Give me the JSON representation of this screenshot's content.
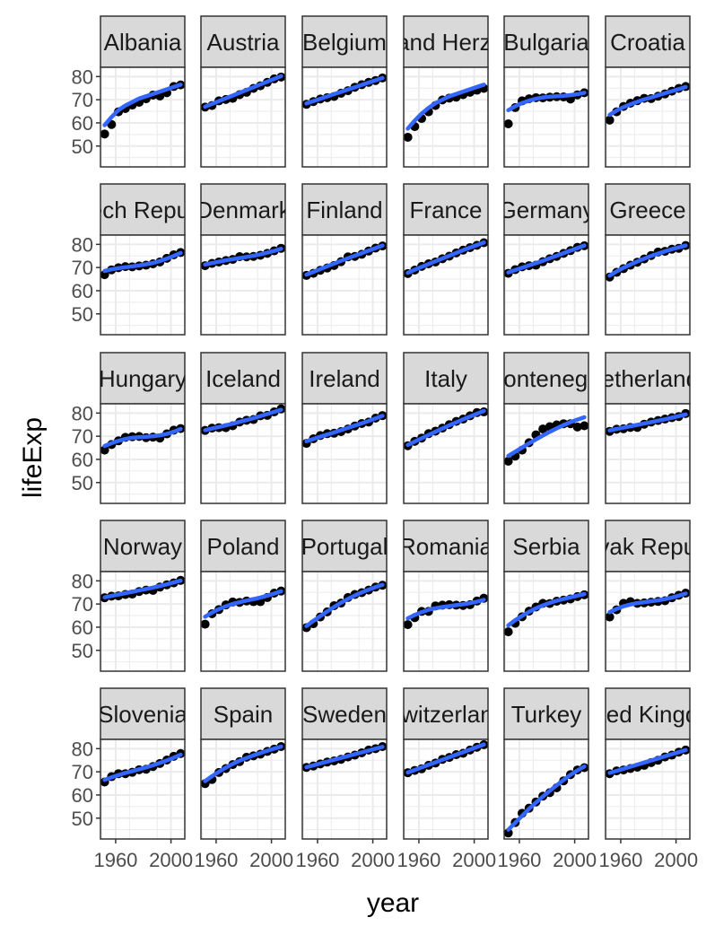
{
  "chart_data": {
    "type": "scatter",
    "xlabel": "year",
    "ylabel": "lifeExp",
    "x_ticks": [
      1960,
      2000
    ],
    "x_tick_labels": [
      "1960",
      "2000"
    ],
    "y_ticks": [
      50,
      60,
      70,
      80
    ],
    "y_tick_labels": [
      "50",
      "60",
      "70",
      "80"
    ],
    "xlim": [
      1949,
      2010
    ],
    "ylim": [
      41,
      84
    ],
    "years": [
      1952,
      1957,
      1962,
      1967,
      1972,
      1977,
      1982,
      1987,
      1992,
      1997,
      2002,
      2007
    ],
    "smooth": "loess fitted line with confidence band",
    "colors": {
      "points": "#000000",
      "smooth_line": "#3366FF",
      "smooth_band": "#999999",
      "panel_background": "#FFFFFF",
      "panel_grid": "#EBEBEB",
      "panel_border": "#333333",
      "strip_background": "#D9D9D9",
      "strip_border": "#333333"
    },
    "panels": [
      {
        "country": "Albania",
        "strip_label": "Albania",
        "lifeExp": [
          55.2,
          59.3,
          64.8,
          66.2,
          67.7,
          68.9,
          70.4,
          72.0,
          71.6,
          73.0,
          75.7,
          76.4
        ],
        "smooth": [
          59,
          62.5,
          65.5,
          67.5,
          69,
          70.5,
          71.5,
          72.5,
          73.5,
          74.5,
          75.5,
          76.5
        ]
      },
      {
        "country": "Austria",
        "strip_label": "Austria",
        "lifeExp": [
          66.8,
          67.5,
          69.5,
          70.1,
          70.6,
          72.2,
          73.2,
          74.9,
          76.0,
          77.5,
          79.0,
          79.8
        ],
        "smooth": [
          67,
          68.2,
          69.4,
          70.6,
          71.8,
          73,
          74.2,
          75.4,
          76.6,
          77.8,
          79,
          80.2
        ]
      },
      {
        "country": "Belgium",
        "strip_label": "Belgium",
        "lifeExp": [
          68.0,
          69.2,
          70.3,
          70.9,
          71.4,
          72.8,
          73.9,
          75.4,
          76.5,
          77.5,
          78.3,
          79.4
        ],
        "smooth": [
          68.4,
          69.4,
          70.4,
          71.4,
          72.4,
          73.4,
          74.4,
          75.4,
          76.4,
          77.4,
          78.4,
          79.4
        ]
      },
      {
        "country": "Bosnia and Herzegovina",
        "strip_label": "Bosnia and Herzegovina",
        "lifeExp": [
          53.8,
          58.4,
          61.9,
          64.8,
          67.5,
          69.9,
          70.7,
          71.1,
          72.2,
          73.2,
          74.1,
          74.9
        ],
        "smooth": [
          57.5,
          61,
          64,
          66.5,
          68.5,
          70,
          71.5,
          72.5,
          73.5,
          74.5,
          75.5,
          76.5
        ]
      },
      {
        "country": "Bulgaria",
        "strip_label": "Bulgaria",
        "lifeExp": [
          59.6,
          66.6,
          69.5,
          70.4,
          70.9,
          70.8,
          71.1,
          71.3,
          71.2,
          70.3,
          72.1,
          73.0
        ],
        "smooth": [
          65.5,
          67.2,
          68.6,
          69.6,
          70.4,
          71,
          71.3,
          71.5,
          71.7,
          72,
          72.4,
          73
        ]
      },
      {
        "country": "Croatia",
        "strip_label": "Croatia",
        "lifeExp": [
          61.2,
          64.8,
          67.1,
          68.5,
          69.6,
          70.6,
          70.5,
          71.5,
          72.5,
          73.7,
          74.9,
          75.7
        ],
        "smooth": [
          63.5,
          65.3,
          66.8,
          68,
          69.1,
          70.1,
          71,
          71.9,
          72.8,
          73.7,
          74.6,
          75.5
        ]
      },
      {
        "country": "Czech Republic",
        "strip_label": "Czech Republic",
        "lifeExp": [
          66.9,
          69.0,
          69.9,
          70.4,
          70.3,
          70.7,
          71.0,
          71.6,
          72.4,
          74.0,
          75.5,
          76.5
        ],
        "smooth": [
          68.5,
          69.2,
          69.7,
          70.1,
          70.5,
          70.9,
          71.4,
          72,
          72.8,
          73.8,
          75,
          76.3
        ]
      },
      {
        "country": "Denmark",
        "strip_label": "Denmark",
        "lifeExp": [
          70.8,
          71.8,
          72.4,
          73.0,
          73.5,
          74.7,
          74.6,
          74.8,
          75.3,
          76.1,
          77.2,
          78.3
        ],
        "smooth": [
          71.3,
          71.9,
          72.5,
          73.1,
          73.6,
          74.1,
          74.6,
          75.1,
          75.7,
          76.4,
          77.2,
          78.1
        ]
      },
      {
        "country": "Finland",
        "strip_label": "Finland",
        "lifeExp": [
          66.6,
          67.5,
          68.8,
          69.8,
          70.9,
          72.5,
          74.6,
          74.8,
          75.7,
          77.1,
          78.4,
          79.3
        ],
        "smooth": [
          66.9,
          68.1,
          69.3,
          70.5,
          71.7,
          72.9,
          74,
          75.1,
          76.2,
          77.3,
          78.4,
          79.5
        ]
      },
      {
        "country": "France",
        "strip_label": "France",
        "lifeExp": [
          67.4,
          68.9,
          70.5,
          71.6,
          72.4,
          73.8,
          74.9,
          76.3,
          77.5,
          78.6,
          79.6,
          80.7
        ],
        "smooth": [
          67.7,
          69,
          70.3,
          71.5,
          72.7,
          73.9,
          75.1,
          76.3,
          77.5,
          78.6,
          79.7,
          80.8
        ]
      },
      {
        "country": "Germany",
        "strip_label": "Germany",
        "lifeExp": [
          67.5,
          69.1,
          70.3,
          70.8,
          71.0,
          72.5,
          73.8,
          74.8,
          76.1,
          77.3,
          78.7,
          79.4
        ],
        "smooth": [
          67.9,
          68.9,
          69.9,
          70.9,
          71.9,
          72.9,
          74,
          75.1,
          76.2,
          77.3,
          78.4,
          79.5
        ]
      },
      {
        "country": "Greece",
        "strip_label": "Greece",
        "lifeExp": [
          65.9,
          67.9,
          69.5,
          71.0,
          72.3,
          73.7,
          75.2,
          76.7,
          77.0,
          77.9,
          78.3,
          79.5
        ],
        "smooth": [
          66.5,
          68.3,
          69.9,
          71.3,
          72.6,
          73.8,
          75,
          76,
          77,
          77.9,
          78.7,
          79.5
        ]
      },
      {
        "country": "Hungary",
        "strip_label": "Hungary",
        "lifeExp": [
          64.0,
          66.4,
          68.0,
          69.5,
          69.8,
          69.9,
          69.4,
          69.6,
          69.2,
          71.0,
          72.6,
          73.3
        ],
        "smooth": [
          65.8,
          67,
          68,
          68.8,
          69.3,
          69.6,
          69.8,
          70,
          70.4,
          71,
          71.9,
          73.1
        ]
      },
      {
        "country": "Iceland",
        "strip_label": "Iceland",
        "lifeExp": [
          72.5,
          73.5,
          73.7,
          73.7,
          74.5,
          76.1,
          76.9,
          77.2,
          78.8,
          79.0,
          80.5,
          81.8
        ],
        "smooth": [
          72.6,
          73.3,
          74,
          74.7,
          75.4,
          76.2,
          77,
          77.8,
          78.7,
          79.6,
          80.5,
          81.4
        ]
      },
      {
        "country": "Ireland",
        "strip_label": "Ireland",
        "lifeExp": [
          66.9,
          68.9,
          70.3,
          71.1,
          71.3,
          72.0,
          73.1,
          74.4,
          75.5,
          76.1,
          77.8,
          78.9
        ],
        "smooth": [
          67.8,
          68.8,
          69.8,
          70.7,
          71.6,
          72.6,
          73.6,
          74.6,
          75.6,
          76.6,
          77.7,
          78.8
        ]
      },
      {
        "country": "Italy",
        "strip_label": "Italy",
        "lifeExp": [
          65.9,
          67.8,
          69.2,
          71.1,
          72.2,
          73.5,
          75.0,
          76.4,
          77.4,
          78.8,
          80.2,
          80.5
        ],
        "smooth": [
          66.2,
          67.7,
          69.1,
          70.5,
          71.9,
          73.3,
          74.7,
          76,
          77.3,
          78.5,
          79.7,
          80.9
        ]
      },
      {
        "country": "Montenegro",
        "strip_label": "Montenegro",
        "lifeExp": [
          59.2,
          61.4,
          64.0,
          67.2,
          70.6,
          73.1,
          74.1,
          74.9,
          75.4,
          75.4,
          74.0,
          74.5
        ],
        "smooth": [
          61.5,
          63.3,
          65.1,
          66.9,
          68.6,
          70.3,
          71.9,
          73.4,
          74.8,
          76.1,
          77.2,
          78.2
        ]
      },
      {
        "country": "Netherlands",
        "strip_label": "Netherlands",
        "lifeExp": [
          72.1,
          73.0,
          73.2,
          73.8,
          73.8,
          75.2,
          76.1,
          76.8,
          77.4,
          78.0,
          78.5,
          79.8
        ],
        "smooth": [
          72.5,
          73.1,
          73.7,
          74.3,
          74.9,
          75.5,
          76.1,
          76.7,
          77.3,
          78,
          78.7,
          79.4
        ]
      },
      {
        "country": "Norway",
        "strip_label": "Norway",
        "lifeExp": [
          72.7,
          73.4,
          73.5,
          74.1,
          74.3,
          75.4,
          76.0,
          75.9,
          77.3,
          78.3,
          79.1,
          80.2
        ],
        "smooth": [
          72.9,
          73.5,
          74.1,
          74.7,
          75.3,
          75.9,
          76.5,
          77.1,
          77.8,
          78.5,
          79.3,
          80.1
        ]
      },
      {
        "country": "Poland",
        "strip_label": "Poland",
        "lifeExp": [
          61.3,
          65.8,
          67.6,
          69.6,
          70.9,
          70.7,
          71.3,
          71.0,
          71.0,
          72.8,
          74.7,
          75.6
        ],
        "smooth": [
          64.5,
          66.3,
          67.8,
          69,
          70,
          70.8,
          71.5,
          72.1,
          72.8,
          73.6,
          74.5,
          75.5
        ]
      },
      {
        "country": "Portugal",
        "strip_label": "Portugal",
        "lifeExp": [
          59.8,
          61.5,
          64.4,
          66.6,
          69.3,
          70.4,
          72.8,
          74.1,
          74.9,
          76.0,
          77.3,
          78.1
        ],
        "smooth": [
          60.5,
          62.7,
          64.8,
          66.8,
          68.7,
          70.5,
          72.2,
          73.7,
          75,
          76.2,
          77.3,
          78.3
        ]
      },
      {
        "country": "Romania",
        "strip_label": "Romania",
        "lifeExp": [
          61.1,
          64.1,
          66.8,
          66.8,
          69.2,
          69.5,
          69.7,
          69.5,
          69.4,
          69.7,
          71.3,
          72.5
        ],
        "smooth": [
          63.8,
          65.3,
          66.5,
          67.5,
          68.2,
          68.7,
          69.1,
          69.5,
          69.9,
          70.4,
          71,
          71.8
        ]
      },
      {
        "country": "Serbia",
        "strip_label": "Serbia",
        "lifeExp": [
          58.0,
          61.7,
          64.5,
          66.9,
          68.7,
          70.3,
          70.2,
          71.2,
          71.7,
          72.2,
          73.2,
          74.0
        ],
        "smooth": [
          60.8,
          63,
          64.9,
          66.6,
          68.1,
          69.4,
          70.5,
          71.4,
          72.2,
          72.9,
          73.6,
          74.3
        ]
      },
      {
        "country": "Slovak Republic",
        "strip_label": "Slovak Republic",
        "lifeExp": [
          64.4,
          67.5,
          70.3,
          71.0,
          70.3,
          70.5,
          70.8,
          71.1,
          71.4,
          72.7,
          73.8,
          74.7
        ],
        "smooth": [
          66.5,
          67.9,
          69,
          69.8,
          70.4,
          70.8,
          71.2,
          71.6,
          72.1,
          72.8,
          73.6,
          74.5
        ]
      },
      {
        "country": "Slovenia",
        "strip_label": "Slovenia",
        "lifeExp": [
          65.6,
          67.9,
          69.2,
          69.2,
          69.8,
          70.9,
          71.1,
          72.3,
          73.6,
          75.1,
          76.7,
          77.9
        ],
        "smooth": [
          66.5,
          67.6,
          68.6,
          69.5,
          70.3,
          71.1,
          71.9,
          72.8,
          73.8,
          74.9,
          76.1,
          77.4
        ]
      },
      {
        "country": "Spain",
        "strip_label": "Spain",
        "lifeExp": [
          64.9,
          66.7,
          69.7,
          71.4,
          73.1,
          74.4,
          76.3,
          76.9,
          77.6,
          78.8,
          79.8,
          80.9
        ],
        "smooth": [
          66,
          68.1,
          70,
          71.8,
          73.4,
          74.8,
          76,
          77.1,
          78.1,
          79.1,
          80,
          80.9
        ]
      },
      {
        "country": "Sweden",
        "strip_label": "Sweden",
        "lifeExp": [
          71.9,
          72.5,
          73.4,
          74.2,
          74.7,
          75.4,
          76.4,
          77.2,
          78.2,
          79.4,
          80.0,
          80.9
        ],
        "smooth": [
          72,
          72.8,
          73.6,
          74.4,
          75.2,
          76,
          76.8,
          77.6,
          78.4,
          79.2,
          80,
          80.8
        ]
      },
      {
        "country": "Switzerland",
        "strip_label": "Switzerland",
        "lifeExp": [
          69.6,
          70.6,
          71.3,
          72.8,
          73.8,
          75.4,
          76.2,
          77.4,
          78.0,
          79.4,
          80.6,
          81.7
        ],
        "smooth": [
          69.7,
          70.8,
          71.9,
          73,
          74.1,
          75.2,
          76.3,
          77.4,
          78.5,
          79.6,
          80.7,
          81.8
        ]
      },
      {
        "country": "Turkey",
        "strip_label": "Turkey",
        "lifeExp": [
          43.6,
          48.1,
          52.1,
          54.3,
          57.0,
          59.5,
          61.0,
          63.1,
          66.1,
          68.8,
          70.8,
          71.8
        ],
        "smooth": [
          45,
          48,
          51,
          54,
          56.7,
          59.3,
          61.8,
          64.2,
          66.5,
          68.7,
          70.6,
          72.3
        ]
      },
      {
        "country": "United Kingdom",
        "strip_label": "United Kingdom",
        "lifeExp": [
          69.2,
          70.4,
          70.8,
          71.4,
          72.0,
          72.8,
          74.0,
          75.0,
          76.4,
          77.2,
          78.5,
          79.4
        ],
        "smooth": [
          69.5,
          70.4,
          71.3,
          72.2,
          73.1,
          74,
          74.9,
          75.8,
          76.7,
          77.6,
          78.5,
          79.4
        ]
      }
    ]
  }
}
